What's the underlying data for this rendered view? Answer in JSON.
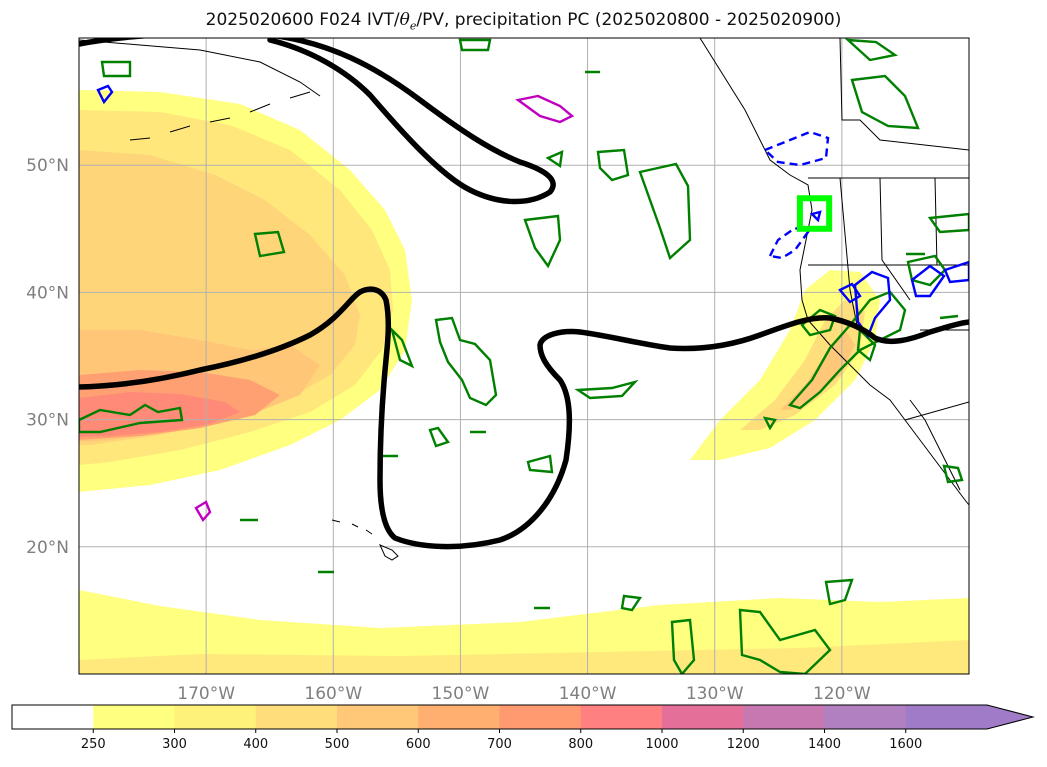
{
  "title": {
    "prefix": "2025020600 F024 IVT/",
    "theta": "θ",
    "theta_sub": "e",
    "suffix": "/PV, precipitation PC (2025020800 - 2025020900)"
  },
  "map": {
    "lon_range": [
      -180,
      -110
    ],
    "lat_range": [
      10,
      60
    ],
    "latitudes": [
      {
        "value": 20,
        "label": "20°N"
      },
      {
        "value": 30,
        "label": "30°N"
      },
      {
        "value": 40,
        "label": "40°N"
      },
      {
        "value": 50,
        "label": "50°N"
      }
    ],
    "longitudes": [
      {
        "value": -170,
        "label": "170°W"
      },
      {
        "value": -160,
        "label": "160°W"
      },
      {
        "value": -150,
        "label": "150°W"
      },
      {
        "value": -140,
        "label": "140°W"
      },
      {
        "value": -130,
        "label": "130°W"
      },
      {
        "value": -120,
        "label": "120°W"
      }
    ],
    "highlight_box": {
      "lon": [
        -123.3,
        -121
      ],
      "lat": [
        45,
        47.4
      ],
      "color": "#00ff00"
    },
    "pv_contour_color": "#000000",
    "precip_color": "#008000",
    "blue_color": "#0000ff",
    "magenta_color": "#c000c0"
  },
  "colorbar": {
    "levels": [
      "250",
      "300",
      "400",
      "500",
      "600",
      "700",
      "800",
      "1000",
      "1200",
      "1400",
      "1600"
    ],
    "colors": [
      "#ffffff",
      "#ffff80",
      "#fff27a",
      "#ffdd7a",
      "#ffc878",
      "#ffb070",
      "#ff9a70",
      "#ff8080",
      "#e4709a",
      "#c878b0",
      "#b080c0",
      "#a07cc8"
    ],
    "extend": "max"
  }
}
